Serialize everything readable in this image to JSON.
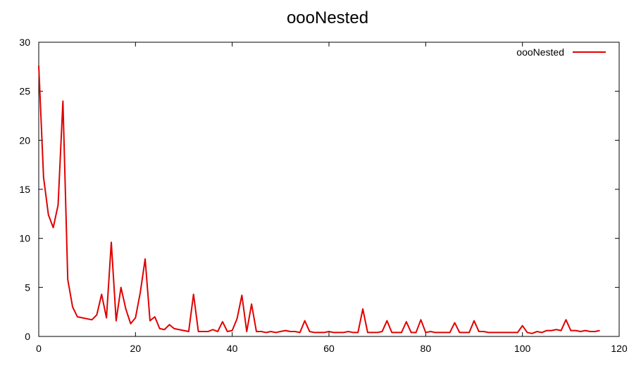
{
  "chart_data": {
    "type": "line",
    "title": "oooNested",
    "xlabel": "",
    "ylabel": "",
    "xlim": [
      0,
      120
    ],
    "ylim": [
      0,
      30
    ],
    "xticks": [
      0,
      20,
      40,
      60,
      80,
      100,
      120
    ],
    "yticks": [
      0,
      5,
      10,
      15,
      20,
      25,
      30
    ],
    "grid": false,
    "legend_position": "top-right",
    "series": [
      {
        "name": "oooNested",
        "color": "#e00000",
        "x": [
          0,
          1,
          2,
          3,
          4,
          5,
          6,
          7,
          8,
          9,
          10,
          11,
          12,
          13,
          14,
          15,
          16,
          17,
          18,
          19,
          20,
          21,
          22,
          23,
          24,
          25,
          26,
          27,
          28,
          29,
          30,
          31,
          32,
          33,
          34,
          35,
          36,
          37,
          38,
          39,
          40,
          41,
          42,
          43,
          44,
          45,
          46,
          47,
          48,
          49,
          50,
          51,
          52,
          53,
          54,
          55,
          56,
          57,
          58,
          59,
          60,
          61,
          62,
          63,
          64,
          65,
          66,
          67,
          68,
          69,
          70,
          71,
          72,
          73,
          74,
          75,
          76,
          77,
          78,
          79,
          80,
          81,
          82,
          83,
          84,
          85,
          86,
          87,
          88,
          89,
          90,
          91,
          92,
          93,
          94,
          95,
          96,
          97,
          98,
          99,
          100,
          101,
          102,
          103,
          104,
          105,
          106,
          107,
          108,
          109,
          110,
          111,
          112,
          113,
          114,
          115,
          116
        ],
        "y": [
          27.6,
          16.2,
          12.4,
          11.1,
          13.4,
          24.0,
          5.8,
          3.0,
          2.0,
          1.9,
          1.8,
          1.7,
          2.2,
          4.3,
          1.9,
          9.6,
          1.6,
          5.0,
          2.8,
          1.3,
          1.9,
          4.5,
          7.9,
          1.6,
          2.0,
          0.8,
          0.7,
          1.2,
          0.8,
          0.7,
          0.6,
          0.5,
          4.3,
          0.5,
          0.5,
          0.5,
          0.7,
          0.5,
          1.5,
          0.5,
          0.6,
          1.8,
          4.2,
          0.5,
          3.3,
          0.5,
          0.5,
          0.4,
          0.5,
          0.4,
          0.5,
          0.6,
          0.5,
          0.5,
          0.4,
          1.6,
          0.5,
          0.4,
          0.4,
          0.4,
          0.5,
          0.4,
          0.4,
          0.4,
          0.5,
          0.4,
          0.4,
          2.8,
          0.4,
          0.4,
          0.4,
          0.5,
          1.6,
          0.4,
          0.4,
          0.4,
          1.5,
          0.4,
          0.4,
          1.7,
          0.4,
          0.5,
          0.4,
          0.4,
          0.4,
          0.4,
          1.4,
          0.4,
          0.4,
          0.4,
          1.6,
          0.5,
          0.5,
          0.4,
          0.4,
          0.4,
          0.4,
          0.4,
          0.4,
          0.4,
          1.1,
          0.4,
          0.3,
          0.5,
          0.4,
          0.6,
          0.6,
          0.7,
          0.6,
          1.7,
          0.6,
          0.6,
          0.5,
          0.6,
          0.5,
          0.5,
          0.6
        ]
      }
    ]
  }
}
